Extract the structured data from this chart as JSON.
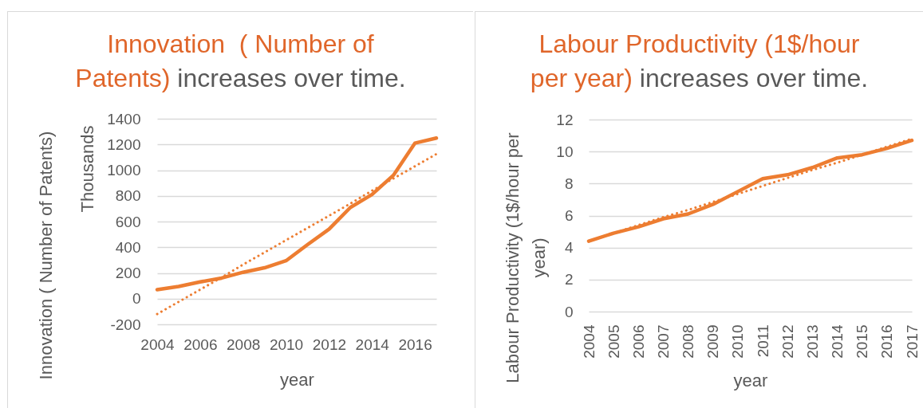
{
  "chart_data": [
    {
      "type": "line",
      "title": "Innovation  ( Number of Patents) increases over time.",
      "xlabel": "year",
      "ylabel": "Innovation  ( Number of Patents)",
      "annotations": [
        "Thousands"
      ],
      "x": [
        2004,
        2005,
        2006,
        2007,
        2008,
        2009,
        2010,
        2011,
        2012,
        2013,
        2014,
        2015,
        2016,
        2017
      ],
      "series": [
        {
          "color": "#ed7d31",
          "values": [
            70,
            95,
            130,
            160,
            205,
            240,
            295,
            420,
            540,
            710,
            810,
            960,
            1210,
            1250
          ]
        },
        {
          "type": "line",
          "color": "#ed7d31",
          "line_style": "dotted",
          "values": [
            -120,
            -25,
            70,
            165,
            265,
            360,
            455,
            550,
            645,
            740,
            840,
            935,
            1030,
            1125
          ]
        }
      ],
      "xlim": [
        2004,
        2017
      ],
      "xticks": [
        2004,
        2006,
        2008,
        2010,
        2012,
        2014,
        2016
      ],
      "ylim": [
        -200,
        1400
      ],
      "yticks": [
        -200,
        0,
        200,
        400,
        600,
        800,
        1000,
        1200,
        1400
      ],
      "grid": "y"
    },
    {
      "type": "line",
      "title": "Labour Productivity (1$/hour per year) increases over time.",
      "xlabel": "year",
      "ylabel": "Labour Productivity (1$/hour per year)",
      "x": [
        2004,
        2005,
        2006,
        2007,
        2008,
        2009,
        2010,
        2011,
        2012,
        2013,
        2014,
        2015,
        2016,
        2017
      ],
      "series": [
        {
          "color": "#ed7d31",
          "values": [
            4.4,
            4.9,
            5.3,
            5.8,
            6.1,
            6.7,
            7.5,
            8.3,
            8.55,
            9.0,
            9.6,
            9.8,
            10.2,
            10.7
          ]
        },
        {
          "type": "line",
          "color": "#ed7d31",
          "line_style": "dotted",
          "values": [
            4.4,
            4.9,
            5.4,
            5.9,
            6.35,
            6.85,
            7.35,
            7.85,
            8.35,
            8.85,
            9.3,
            9.8,
            10.3,
            10.8
          ]
        }
      ],
      "xlim": [
        2004,
        2017
      ],
      "xticks": [
        2004,
        2005,
        2006,
        2007,
        2008,
        2009,
        2010,
        2011,
        2012,
        2013,
        2014,
        2015,
        2016,
        2017
      ],
      "ylim": [
        0,
        12
      ],
      "yticks": [
        0,
        2,
        4,
        6,
        8,
        10,
        12
      ],
      "grid": "y"
    }
  ]
}
